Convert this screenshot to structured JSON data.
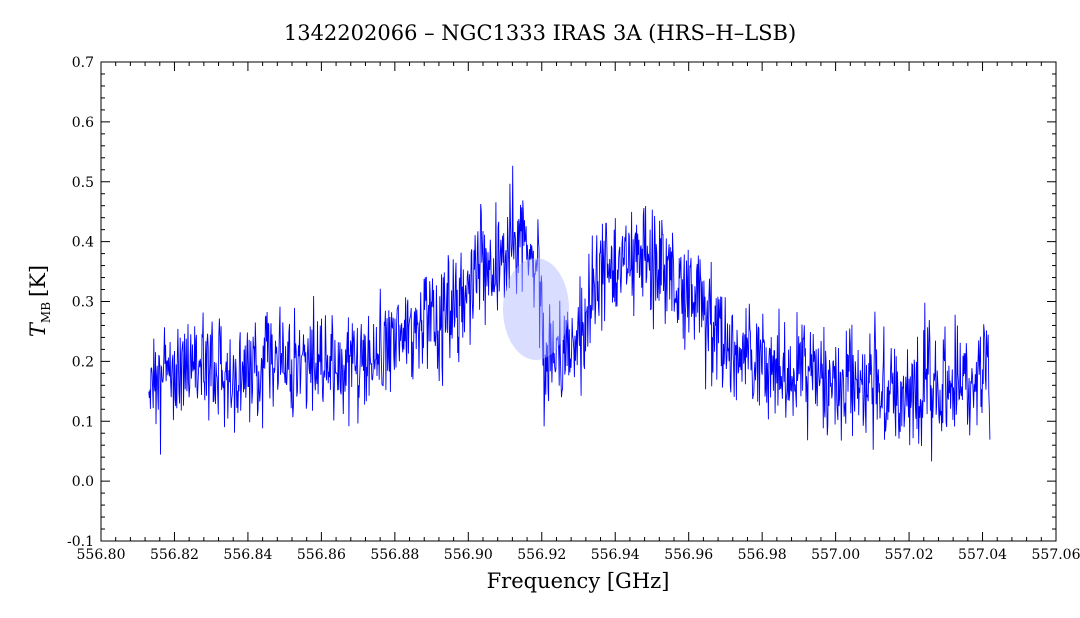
{
  "chart_data": {
    "type": "line",
    "title": "1342202066 – NGC1333 IRAS 3A (HRS–H–LSB)",
    "xlabel": "Frequency [GHz]",
    "ylabel": {
      "symbol": "T",
      "subscript": "MB",
      "unit": "[K]"
    },
    "xlim": [
      556.8,
      557.06
    ],
    "ylim": [
      -0.1,
      0.7
    ],
    "x_ticks": [
      "556.80",
      "556.82",
      "556.84",
      "556.86",
      "556.88",
      "556.90",
      "556.92",
      "556.94",
      "556.96",
      "556.98",
      "557.00",
      "557.02",
      "557.04",
      "557.06"
    ],
    "y_ticks": [
      "-0.1",
      "0.0",
      "0.1",
      "0.2",
      "0.3",
      "0.4",
      "0.5",
      "0.6",
      "0.7"
    ],
    "grid": false,
    "series": [
      {
        "color": "#0000ff",
        "x": [
          556.813,
          556.818,
          556.823,
          556.828,
          556.833,
          556.838,
          556.843,
          556.848,
          556.853,
          556.858,
          556.863,
          556.868,
          556.873,
          556.878,
          556.883,
          556.888,
          556.893,
          556.898,
          556.903,
          556.908,
          556.913,
          556.916,
          556.919,
          556.921,
          556.923,
          556.925,
          556.928,
          556.933,
          556.938,
          556.943,
          556.948,
          556.953,
          556.958,
          556.963,
          556.968,
          556.973,
          556.978,
          556.983,
          556.988,
          556.993,
          556.998,
          557.003,
          557.008,
          557.013,
          557.018,
          557.023,
          557.028,
          557.033,
          557.038,
          557.042
        ],
        "y": [
          0.17,
          0.18,
          0.19,
          0.18,
          0.19,
          0.18,
          0.19,
          0.2,
          0.19,
          0.2,
          0.19,
          0.2,
          0.21,
          0.22,
          0.25,
          0.27,
          0.28,
          0.31,
          0.35,
          0.38,
          0.42,
          0.4,
          0.33,
          0.18,
          0.22,
          0.2,
          0.23,
          0.3,
          0.35,
          0.38,
          0.36,
          0.36,
          0.33,
          0.29,
          0.25,
          0.22,
          0.2,
          0.18,
          0.18,
          0.17,
          0.17,
          0.16,
          0.16,
          0.15,
          0.15,
          0.16,
          0.15,
          0.16,
          0.17,
          0.18
        ]
      }
    ],
    "annotations": []
  }
}
